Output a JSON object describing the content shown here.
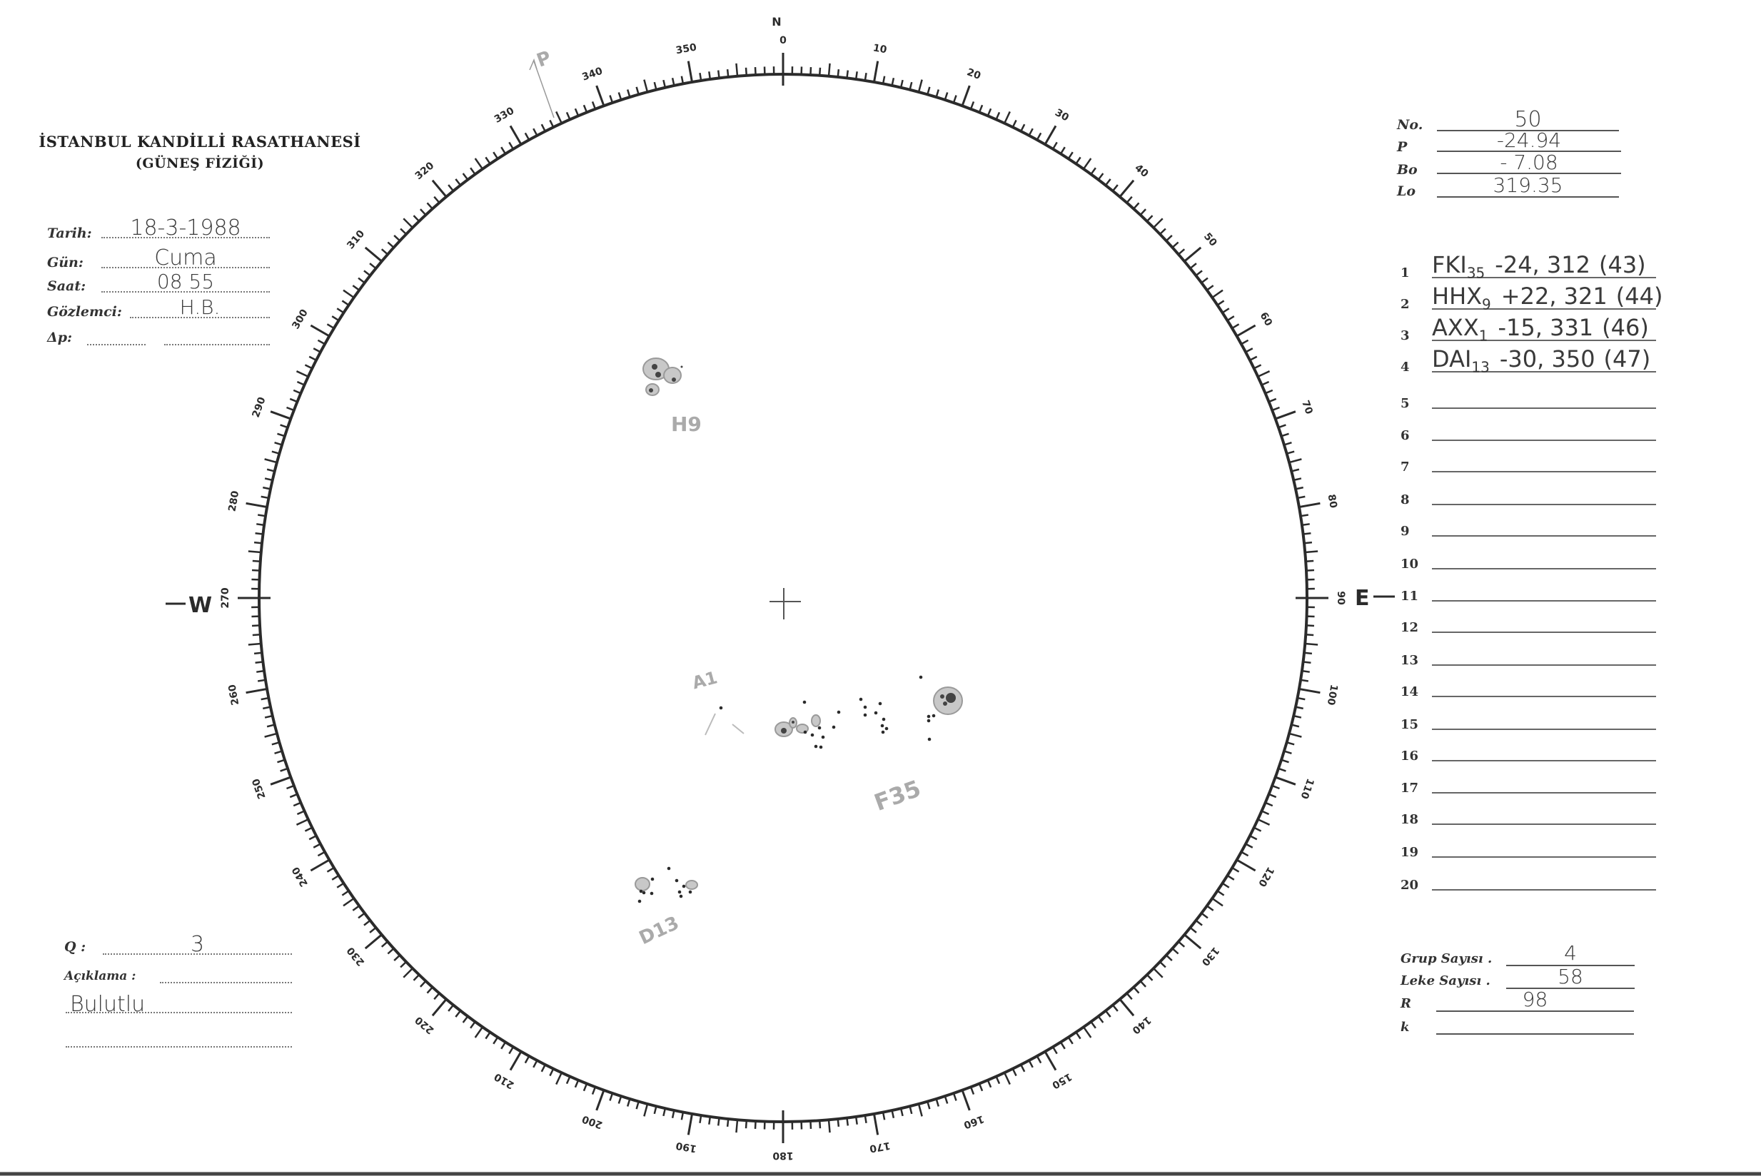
{
  "header": {
    "institution": "İSTANBUL KANDİLLİ RASATHANESİ",
    "department": "(GÜNEŞ FİZİĞİ)"
  },
  "observation": {
    "date_label": "Tarih:",
    "date": "18-3-1988",
    "day_label": "Gün:",
    "day": "Cuma",
    "time_label": "Saat:",
    "time": "08 55",
    "observer_label": "Gözlemci:",
    "observer": "H.B.",
    "delta_p_label": "Δp:",
    "delta_p": ""
  },
  "ephemeris": {
    "no_label": "No.",
    "no": "50",
    "p_label": "P",
    "p": "-24.94",
    "bo_label": "Bo",
    "bo": "- 7.08",
    "lo_label": "Lo",
    "lo": "319.35"
  },
  "groups": [
    {
      "num": "1",
      "class": "FKI",
      "count": "35",
      "coords": "-24, 312",
      "extra": "(43)"
    },
    {
      "num": "2",
      "class": "HHX",
      "count": "9",
      "coords": "+22, 321",
      "extra": "(44)"
    },
    {
      "num": "3",
      "class": "AXX",
      "count": "1",
      "coords": "-15, 331",
      "extra": "(46)"
    },
    {
      "num": "4",
      "class": "DAI",
      "count": "13",
      "coords": "-30, 350",
      "extra": "(47)"
    },
    {
      "num": "5"
    },
    {
      "num": "6"
    },
    {
      "num": "7"
    },
    {
      "num": "8"
    },
    {
      "num": "9"
    },
    {
      "num": "10"
    },
    {
      "num": "11"
    },
    {
      "num": "12"
    },
    {
      "num": "13"
    },
    {
      "num": "14"
    },
    {
      "num": "15"
    },
    {
      "num": "16"
    },
    {
      "num": "17"
    },
    {
      "num": "18"
    },
    {
      "num": "19"
    },
    {
      "num": "20"
    }
  ],
  "summary": {
    "group_count_label": "Grup Sayısı .",
    "group_count": "4",
    "spot_count_label": "Leke Sayısı .",
    "spot_count": "58",
    "r_label": "R",
    "r": "98",
    "k_label": "k",
    "k": ""
  },
  "notes": {
    "q_label": "Q :",
    "q": "3",
    "remark_label": "Açıklama :",
    "remark": "Bulutlu"
  },
  "disk": {
    "north": "N",
    "west": "W",
    "east": "E",
    "p_axis": "P",
    "scale_labels": [
      "0",
      "10",
      "20",
      "30",
      "40",
      "50",
      "60",
      "70",
      "80",
      "90",
      "100",
      "110",
      "120",
      "130",
      "140",
      "150",
      "160",
      "170",
      "180",
      "190",
      "200",
      "210",
      "220",
      "230",
      "240",
      "250",
      "260",
      "270",
      "280",
      "290",
      "300",
      "310",
      "320",
      "330",
      "340",
      "350"
    ],
    "group_labels": {
      "h": "H9",
      "f": "F35",
      "a": "A1",
      "d": "D13"
    },
    "ink_color": "#2b2b2b",
    "penumbra_color": "#9a9a9a",
    "pencil_color": "#aaaaaa"
  }
}
